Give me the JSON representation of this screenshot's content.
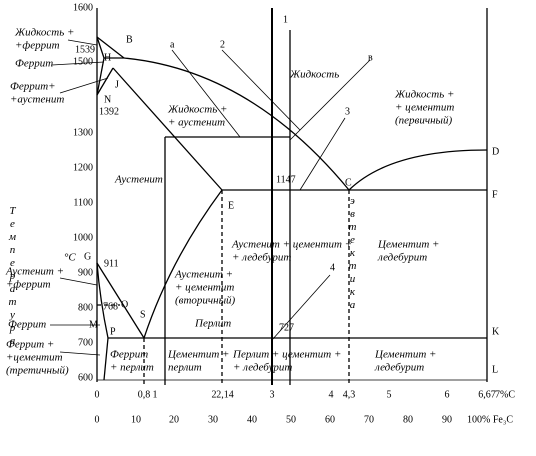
{
  "y_axis": {
    "title": "Температура",
    "unit": "°С",
    "ticks": [
      1600,
      1500,
      1300,
      1200,
      1100,
      1000,
      900,
      800,
      700,
      600
    ]
  },
  "x_axis_carbon": [
    "0",
    "0,8",
    "1",
    "2",
    "2,14",
    "3",
    "4",
    "4,3",
    "5",
    "6",
    "6,67",
    "7%С"
  ],
  "x_axis_cementite": [
    "0",
    "10",
    "20",
    "30",
    "40",
    "50",
    "60",
    "70",
    "80",
    "90",
    "100% Fe₃C"
  ],
  "points": [
    "1539",
    "H",
    "B",
    "J",
    "N",
    "1392",
    "G",
    "911",
    "768",
    "O",
    "M",
    "P",
    "S",
    "E",
    "C",
    "D",
    "F",
    "K",
    "L",
    "1147",
    "727"
  ],
  "line_numbers": [
    "1",
    "2",
    "3",
    "4",
    "а",
    "в"
  ],
  "eutectic_label": "эвтектика",
  "side_labels": [
    [
      "Жидкость +",
      "+феррит"
    ],
    [
      "Феррит"
    ],
    [
      "Феррит+",
      "+аустенит"
    ],
    [
      "Аустенит +",
      "+феррит"
    ],
    [
      "Феррит"
    ],
    [
      "Феррит +",
      "+цементит",
      "(третичный)"
    ]
  ],
  "phase_regions": [
    [
      "Жидкость"
    ],
    [
      "Жидкость +",
      "+ аустенит"
    ],
    [
      "Аустенит"
    ],
    [
      "Жидкость +",
      "+ цементит",
      "(первичный)"
    ],
    [
      "Аустенит + цементит +",
      "+ ледебурит"
    ],
    [
      "Цементит +",
      "ледебурит"
    ],
    [
      "Аустенит +",
      "+ цементит",
      "(вторичный)"
    ],
    [
      "Перлит"
    ],
    [
      "Феррит",
      "+ перлит"
    ],
    [
      "Цементит +",
      "перлит"
    ],
    [
      "Перлит + цементит +",
      "+ ледебурит"
    ],
    [
      "Цементит +",
      "ледебурит"
    ]
  ]
}
